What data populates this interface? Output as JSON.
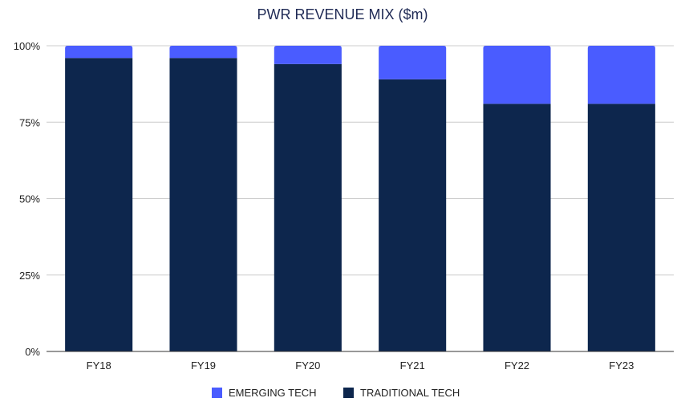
{
  "chart_data": {
    "type": "bar",
    "stacked": true,
    "normalized": true,
    "title": "PWR REVENUE MIX ($m)",
    "xlabel": "",
    "ylabel": "",
    "ylim": [
      0,
      100
    ],
    "yticks": [
      0,
      25,
      50,
      75,
      100
    ],
    "ytick_labels": [
      "0%",
      "25%",
      "50%",
      "75%",
      "100%"
    ],
    "categories": [
      "FY18",
      "FY19",
      "FY20",
      "FY21",
      "FY22",
      "FY23"
    ],
    "series": [
      {
        "name": "TRADITIONAL TECH",
        "color": "#0d264d",
        "values": [
          96,
          96,
          94,
          89,
          81,
          81
        ]
      },
      {
        "name": "EMERGING TECH",
        "color": "#4a5cff",
        "values": [
          4,
          4,
          6,
          11,
          19,
          19
        ]
      }
    ],
    "legend": {
      "position": "bottom-center",
      "entries": [
        {
          "label": "EMERGING TECH",
          "color": "#4a5cff"
        },
        {
          "label": "TRADITIONAL TECH",
          "color": "#0d264d"
        }
      ]
    },
    "grid": true
  }
}
